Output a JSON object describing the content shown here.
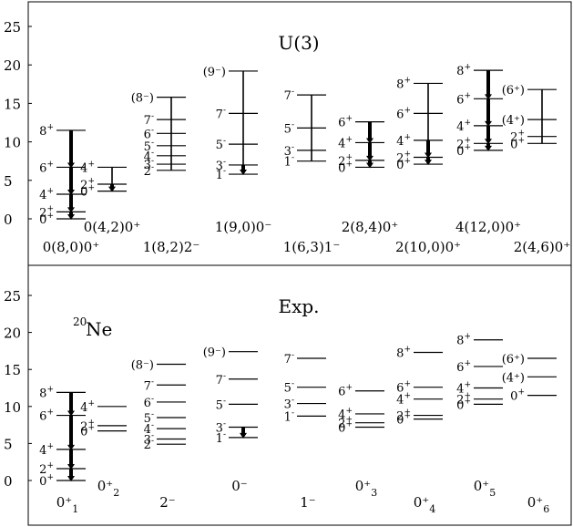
{
  "chart_data": [
    {
      "type": "level-scheme",
      "title": "U(3)",
      "ylim": [
        0,
        25
      ],
      "yticks": [
        0,
        5,
        10,
        15,
        20,
        25
      ],
      "bands": [
        {
          "band_label": "0(8,0)0⁺",
          "band_label_row": "lower",
          "levels": [
            {
              "j": "0",
              "parity": "+",
              "energy": 0.0
            },
            {
              "j": "2",
              "parity": "+",
              "energy": 0.9
            },
            {
              "j": "4",
              "parity": "+",
              "energy": 3.2
            },
            {
              "j": "6",
              "parity": "+",
              "energy": 6.7
            },
            {
              "j": "8",
              "parity": "+",
              "energy": 11.5
            }
          ],
          "stem": {
            "bottom": 0.0,
            "top": 11.5
          },
          "arrows": [
            {
              "from": 0.9,
              "to": 0.0
            },
            {
              "from": 3.2,
              "to": 0.9
            },
            {
              "from": 6.7,
              "to": 3.2
            },
            {
              "from": 11.5,
              "to": 6.7
            }
          ]
        },
        {
          "band_label": "0(4,2)0⁺",
          "band_label_row": "upper",
          "levels": [
            {
              "j": "0",
              "parity": "+",
              "energy": 3.6
            },
            {
              "j": "2",
              "parity": "+",
              "energy": 4.5
            },
            {
              "j": "4",
              "parity": "+",
              "energy": 6.7
            }
          ],
          "stem": {
            "bottom": 3.6,
            "top": 6.7
          },
          "arrows": [
            {
              "from": 4.5,
              "to": 3.6
            }
          ]
        },
        {
          "band_label": "1(8,2)2⁻",
          "band_label_row": "lower",
          "levels": [
            {
              "j": "2",
              "parity": "-",
              "energy": 6.3
            },
            {
              "j": "3",
              "parity": "-",
              "energy": 7.1
            },
            {
              "j": "4",
              "parity": "-",
              "energy": 8.2
            },
            {
              "j": "5",
              "parity": "-",
              "energy": 9.5
            },
            {
              "j": "6",
              "parity": "-",
              "energy": 11.1
            },
            {
              "j": "7",
              "parity": "-",
              "energy": 12.9
            },
            {
              "j": "(8⁻)",
              "parity": "",
              "energy": 15.8
            }
          ],
          "stem": {
            "bottom": 6.3,
            "top": 15.8
          },
          "arrows": []
        },
        {
          "band_label": "1(9,0)0⁻",
          "band_label_row": "upper",
          "levels": [
            {
              "j": "1",
              "parity": "-",
              "energy": 5.8
            },
            {
              "j": "3",
              "parity": "-",
              "energy": 7.0
            },
            {
              "j": "5",
              "parity": "-",
              "energy": 9.7
            },
            {
              "j": "7",
              "parity": "-",
              "energy": 13.7
            },
            {
              "j": "(9⁻)",
              "parity": "",
              "energy": 19.2
            }
          ],
          "stem": {
            "bottom": 5.8,
            "top": 19.2
          },
          "arrows": [
            {
              "from": 7.0,
              "to": 5.8
            }
          ]
        },
        {
          "band_label": "1(6,3)1⁻",
          "band_label_row": "lower",
          "levels": [
            {
              "j": "1",
              "parity": "-",
              "energy": 7.5
            },
            {
              "j": "3",
              "parity": "-",
              "energy": 8.9
            },
            {
              "j": "5",
              "parity": "-",
              "energy": 11.8
            },
            {
              "j": "7",
              "parity": "-",
              "energy": 16.1
            }
          ],
          "stem": {
            "bottom": 7.5,
            "top": 16.1
          },
          "arrows": []
        },
        {
          "band_label": "2(8,4)0⁺",
          "band_label_row": "upper",
          "levels": [
            {
              "j": "0",
              "parity": "+",
              "energy": 6.7
            },
            {
              "j": "2",
              "parity": "+",
              "energy": 7.6
            },
            {
              "j": "4",
              "parity": "+",
              "energy": 9.9
            },
            {
              "j": "6",
              "parity": "+",
              "energy": 12.6
            }
          ],
          "stem": {
            "bottom": 6.7,
            "top": 12.6
          },
          "arrows": [
            {
              "from": 7.6,
              "to": 6.7
            },
            {
              "from": 9.9,
              "to": 7.6
            },
            {
              "from": 12.6,
              "to": 9.9
            }
          ]
        },
        {
          "band_label": "2(10,0)0⁺",
          "band_label_row": "lower",
          "levels": [
            {
              "j": "0",
              "parity": "+",
              "energy": 7.1
            },
            {
              "j": "2",
              "parity": "+",
              "energy": 8.0
            },
            {
              "j": "4",
              "parity": "+",
              "energy": 10.2
            },
            {
              "j": "6",
              "parity": "+",
              "energy": 13.7
            },
            {
              "j": "8",
              "parity": "+",
              "energy": 17.6
            }
          ],
          "stem": {
            "bottom": 7.1,
            "top": 17.6
          },
          "arrows": [
            {
              "from": 8.0,
              "to": 7.1
            },
            {
              "from": 10.2,
              "to": 8.0
            }
          ]
        },
        {
          "band_label": "4(12,0)0⁺",
          "band_label_row": "upper",
          "levels": [
            {
              "j": "0",
              "parity": "+",
              "energy": 8.9
            },
            {
              "j": "2",
              "parity": "+",
              "energy": 9.8
            },
            {
              "j": "4",
              "parity": "+",
              "energy": 12.1
            },
            {
              "j": "6",
              "parity": "+",
              "energy": 15.6
            },
            {
              "j": "8",
              "parity": "+",
              "energy": 19.3
            }
          ],
          "stem": {
            "bottom": 8.9,
            "top": 19.3
          },
          "arrows": [
            {
              "from": 9.8,
              "to": 8.9
            },
            {
              "from": 12.1,
              "to": 9.8
            },
            {
              "from": 15.6,
              "to": 12.1
            },
            {
              "from": 19.3,
              "to": 15.6
            }
          ]
        },
        {
          "band_label": "2(4,6)0⁺",
          "band_label_row": "lower",
          "levels": [
            {
              "j": "0",
              "parity": "+",
              "energy": 9.8
            },
            {
              "j": "2",
              "parity": "+",
              "energy": 10.7
            },
            {
              "j": "(4⁺)",
              "parity": "",
              "energy": 12.9
            },
            {
              "j": "(6⁺)",
              "parity": "",
              "energy": 16.8
            }
          ],
          "stem": {
            "bottom": 9.8,
            "top": 16.8
          },
          "arrows": []
        }
      ]
    },
    {
      "type": "level-scheme",
      "title": "Exp.",
      "nucleus_label": {
        "mass": "20",
        "symbol": "Ne"
      },
      "ylim": [
        0,
        25
      ],
      "yticks": [
        0,
        5,
        10,
        15,
        20,
        25
      ],
      "bands": [
        {
          "band_label": "0⁺",
          "band_label_sub": "1",
          "levels": [
            {
              "j": "0",
              "parity": "+",
              "energy": 0.0
            },
            {
              "j": "2",
              "parity": "+",
              "energy": 1.6
            },
            {
              "j": "4",
              "parity": "+",
              "energy": 4.2
            },
            {
              "j": "6",
              "parity": "+",
              "energy": 8.8
            },
            {
              "j": "8",
              "parity": "+",
              "energy": 11.9
            }
          ],
          "stem": {
            "bottom": 0.0,
            "top": 11.9
          },
          "arrows": [
            {
              "from": 1.6,
              "to": 0.0
            },
            {
              "from": 4.2,
              "to": 1.6
            },
            {
              "from": 8.8,
              "to": 4.2
            },
            {
              "from": 11.9,
              "to": 8.8
            }
          ]
        },
        {
          "band_label": "0⁺",
          "band_label_sub": "2",
          "levels": [
            {
              "j": "0",
              "parity": "+",
              "energy": 6.7
            },
            {
              "j": "2",
              "parity": "+",
              "energy": 7.4
            },
            {
              "j": "4",
              "parity": "+",
              "energy": 10.0
            }
          ],
          "stem": null,
          "arrows": []
        },
        {
          "band_label": "2⁻",
          "band_label_sub": "",
          "levels": [
            {
              "j": "2",
              "parity": "-",
              "energy": 4.9
            },
            {
              "j": "3",
              "parity": "-",
              "energy": 5.6
            },
            {
              "j": "4",
              "parity": "-",
              "energy": 7.0
            },
            {
              "j": "5",
              "parity": "-",
              "energy": 8.5
            },
            {
              "j": "6",
              "parity": "-",
              "energy": 10.6
            },
            {
              "j": "7",
              "parity": "-",
              "energy": 12.9
            },
            {
              "j": "(8⁻)",
              "parity": "",
              "energy": 15.7
            }
          ],
          "stem": null,
          "arrows": []
        },
        {
          "band_label": "0⁻",
          "band_label_sub": "",
          "levels": [
            {
              "j": "1",
              "parity": "-",
              "energy": 5.8
            },
            {
              "j": "3",
              "parity": "-",
              "energy": 7.2
            },
            {
              "j": "5",
              "parity": "-",
              "energy": 10.3
            },
            {
              "j": "7",
              "parity": "-",
              "energy": 13.7
            },
            {
              "j": "(9⁻)",
              "parity": "",
              "energy": 17.4
            }
          ],
          "stem": {
            "bottom": 5.8,
            "top": 7.2
          },
          "arrows": [
            {
              "from": 7.2,
              "to": 5.8
            }
          ]
        },
        {
          "band_label": "1⁻",
          "band_label_sub": "",
          "levels": [
            {
              "j": "1",
              "parity": "-",
              "energy": 8.7
            },
            {
              "j": "3",
              "parity": "-",
              "energy": 10.4
            },
            {
              "j": "5",
              "parity": "-",
              "energy": 12.6
            },
            {
              "j": "7",
              "parity": "-",
              "energy": 16.5
            }
          ],
          "stem": null,
          "arrows": []
        },
        {
          "band_label": "0⁺",
          "band_label_sub": "3",
          "levels": [
            {
              "j": "0",
              "parity": "+",
              "energy": 7.2
            },
            {
              "j": "2",
              "parity": "+",
              "energy": 7.8
            },
            {
              "j": "4",
              "parity": "+",
              "energy": 9.0
            },
            {
              "j": "6",
              "parity": "+",
              "energy": 12.1
            }
          ],
          "stem": null,
          "arrows": []
        },
        {
          "band_label": "0⁺",
          "band_label_sub": "4",
          "levels": [
            {
              "j": "0",
              "parity": "+",
              "energy": 8.3
            },
            {
              "j": "2",
              "parity": "+",
              "energy": 8.8
            },
            {
              "j": "4",
              "parity": "+",
              "energy": 11.0
            },
            {
              "j": "6",
              "parity": "+",
              "energy": 12.6
            },
            {
              "j": "8",
              "parity": "+",
              "energy": 17.3
            }
          ],
          "stem": null,
          "arrows": []
        },
        {
          "band_label": "0⁺",
          "band_label_sub": "5",
          "levels": [
            {
              "j": "0",
              "parity": "+",
              "energy": 10.3
            },
            {
              "j": "2",
              "parity": "+",
              "energy": 11.0
            },
            {
              "j": "4",
              "parity": "+",
              "energy": 12.5
            },
            {
              "j": "6",
              "parity": "+",
              "energy": 15.4
            },
            {
              "j": "8",
              "parity": "+",
              "energy": 19.0
            }
          ],
          "stem": null,
          "arrows": []
        },
        {
          "band_label": "0⁺",
          "band_label_sub": "6",
          "levels": [
            {
              "j": "0",
              "parity": "+",
              "energy": 11.5
            },
            {
              "j": "(4⁺)",
              "parity": "",
              "energy": 14.0
            },
            {
              "j": "(6⁺)",
              "parity": "",
              "energy": 16.5
            }
          ],
          "stem": null,
          "arrows": []
        }
      ]
    }
  ]
}
